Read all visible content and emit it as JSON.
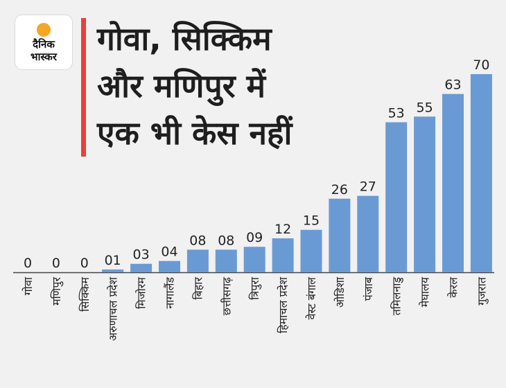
{
  "logo": {
    "line1": "दैनिक",
    "line2": "भास्कर",
    "sun_color": "#f5a623"
  },
  "title_lines": [
    "गोवा, सिक्किम",
    "और मणिपुर में",
    "एक भी केस नहीं"
  ],
  "colors": {
    "bar": "#6a9ad4",
    "accent": "#e8403a",
    "axis": "#444444",
    "text": "#222222",
    "background": "#f1f1f1"
  },
  "chart_data": {
    "type": "bar",
    "categories": [
      "गोवा",
      "मणिपुर",
      "सिक्किम",
      "अरुणाचल प्रदेश",
      "मिजोरम",
      "नागालैंड",
      "बिहार",
      "छत्तीसगढ़",
      "त्रिपुरा",
      "हिमाचल प्रदेश",
      "वेस्ट बंगाल",
      "ओडिशा",
      "पंजाब",
      "तमिलनाडु",
      "मेघालय",
      "केरल",
      "गुजरात"
    ],
    "values": [
      0,
      0,
      0,
      1,
      3,
      4,
      8,
      8,
      9,
      12,
      15,
      26,
      27,
      53,
      55,
      63,
      70
    ],
    "value_labels": [
      "0",
      "0",
      "0",
      "01",
      "03",
      "04",
      "08",
      "08",
      "09",
      "12",
      "15",
      "26",
      "27",
      "53",
      "55",
      "63",
      "70"
    ],
    "title": "गोवा, सिक्किम और मणिपुर में एक भी केस नहीं",
    "xlabel": "",
    "ylabel": "",
    "ylim": [
      0,
      70
    ],
    "grid": false,
    "legend": "none"
  }
}
